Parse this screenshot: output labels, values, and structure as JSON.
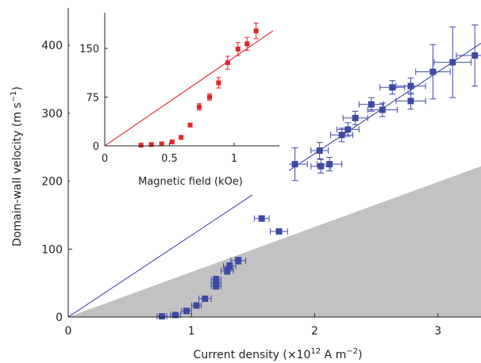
{
  "chart_data": [
    {
      "type": "scatter",
      "xlabel": "Current density (×10",
      "xlabel_exp": "12",
      "xlabel_unit": " A m",
      "xlabel_unit_exp": "−2",
      "xlabel_close": ")",
      "ylabel": "Domain-wall velocity (m s",
      "ylabel_exp": "−1",
      "ylabel_close": ")",
      "xlim": [
        0,
        3.35
      ],
      "ylim": [
        0,
        455
      ],
      "xticks": [
        0,
        1,
        2,
        3
      ],
      "xtick_labels": [
        "0",
        "1",
        "2",
        "3"
      ],
      "yticks": [
        0,
        100,
        200,
        300,
        400
      ],
      "ytick_labels": [
        "0",
        "100",
        "200",
        "300",
        "400"
      ],
      "grid": false,
      "colors": {
        "points": "#3d4aa3",
        "fit_line": "#3d4aa3",
        "shaded_region": "#c2c2c2"
      },
      "shaded_region": {
        "x": [
          0,
          3.35
        ],
        "y_upper": [
          0,
          222
        ]
      },
      "fit_line": {
        "x": [
          0,
          3.35
        ],
        "y": [
          0,
          403
        ]
      },
      "points": [
        {
          "x": 0.76,
          "y": 1,
          "xerr": 0.04,
          "yerr": 0
        },
        {
          "x": 0.87,
          "y": 3,
          "xerr": 0.04,
          "yerr": 0
        },
        {
          "x": 0.96,
          "y": 9,
          "xerr": 0.04,
          "yerr": 4
        },
        {
          "x": 1.04,
          "y": 17,
          "xerr": 0.04,
          "yerr": 4
        },
        {
          "x": 1.11,
          "y": 27,
          "xerr": 0.05,
          "yerr": 4
        },
        {
          "x": 1.2,
          "y": 46,
          "xerr": 0.04,
          "yerr": 5
        },
        {
          "x": 1.2,
          "y": 50,
          "xerr": 0.04,
          "yerr": 5
        },
        {
          "x": 1.2,
          "y": 55,
          "xerr": 0.04,
          "yerr": 5
        },
        {
          "x": 1.29,
          "y": 68,
          "xerr": 0.05,
          "yerr": 5
        },
        {
          "x": 1.31,
          "y": 75,
          "xerr": 0.05,
          "yerr": 5
        },
        {
          "x": 1.38,
          "y": 83,
          "xerr": 0.06,
          "yerr": 5
        },
        {
          "x": 1.57,
          "y": 145,
          "xerr": 0.06,
          "yerr": 4
        },
        {
          "x": 1.71,
          "y": 126,
          "xerr": 0.07,
          "yerr": 4
        },
        {
          "x": 1.84,
          "y": 225,
          "xerr": 0.1,
          "yerr": 24
        },
        {
          "x": 2.04,
          "y": 245,
          "xerr": 0.07,
          "yerr": 12
        },
        {
          "x": 2.05,
          "y": 222,
          "xerr": 0.08,
          "yerr": 10
        },
        {
          "x": 2.12,
          "y": 225,
          "xerr": 0.1,
          "yerr": 10
        },
        {
          "x": 2.22,
          "y": 268,
          "xerr": 0.09,
          "yerr": 10
        },
        {
          "x": 2.27,
          "y": 276,
          "xerr": 0.09,
          "yerr": 10
        },
        {
          "x": 2.33,
          "y": 293,
          "xerr": 0.1,
          "yerr": 10
        },
        {
          "x": 2.46,
          "y": 313,
          "xerr": 0.1,
          "yerr": 10
        },
        {
          "x": 2.55,
          "y": 305,
          "xerr": 0.12,
          "yerr": 10
        },
        {
          "x": 2.63,
          "y": 338,
          "xerr": 0.1,
          "yerr": 10
        },
        {
          "x": 2.78,
          "y": 340,
          "xerr": 0.12,
          "yerr": 12
        },
        {
          "x": 2.78,
          "y": 318,
          "xerr": 0.12,
          "yerr": 12
        },
        {
          "x": 2.96,
          "y": 361,
          "xerr": 0.14,
          "yerr": 40
        },
        {
          "x": 3.12,
          "y": 375,
          "xerr": 0.15,
          "yerr": 52
        },
        {
          "x": 3.3,
          "y": 385,
          "xerr": 0.15,
          "yerr": 45
        }
      ]
    },
    {
      "type": "scatter",
      "xlabel": "Magnetic field (kOe)",
      "ylabel": "",
      "xlim": [
        0,
        1.35
      ],
      "ylim": [
        0,
        205
      ],
      "xticks": [
        0,
        0.5,
        1
      ],
      "xtick_labels": [
        "0",
        "0.5",
        "1"
      ],
      "yticks": [
        0,
        75,
        150
      ],
      "ytick_labels": [
        "0",
        "75",
        "150"
      ],
      "grid": false,
      "colors": {
        "points": "#e3242b",
        "fit_line": "#e3242b"
      },
      "fit_line": {
        "x": [
          0,
          1.3
        ],
        "y": [
          0,
          177
        ]
      },
      "points": [
        {
          "x": 0.28,
          "y": 1,
          "yerr": 0
        },
        {
          "x": 0.36,
          "y": 2,
          "yerr": 0
        },
        {
          "x": 0.44,
          "y": 3,
          "yerr": 0
        },
        {
          "x": 0.52,
          "y": 6,
          "yerr": 1
        },
        {
          "x": 0.59,
          "y": 13,
          "yerr": 2
        },
        {
          "x": 0.66,
          "y": 32,
          "yerr": 2
        },
        {
          "x": 0.73,
          "y": 60,
          "yerr": 5
        },
        {
          "x": 0.81,
          "y": 75,
          "yerr": 5
        },
        {
          "x": 0.88,
          "y": 97,
          "yerr": 8
        },
        {
          "x": 0.95,
          "y": 128,
          "yerr": 10
        },
        {
          "x": 1.03,
          "y": 149,
          "yerr": 10
        },
        {
          "x": 1.1,
          "y": 157,
          "yerr": 10
        },
        {
          "x": 1.17,
          "y": 177,
          "yerr": 12
        }
      ]
    }
  ]
}
